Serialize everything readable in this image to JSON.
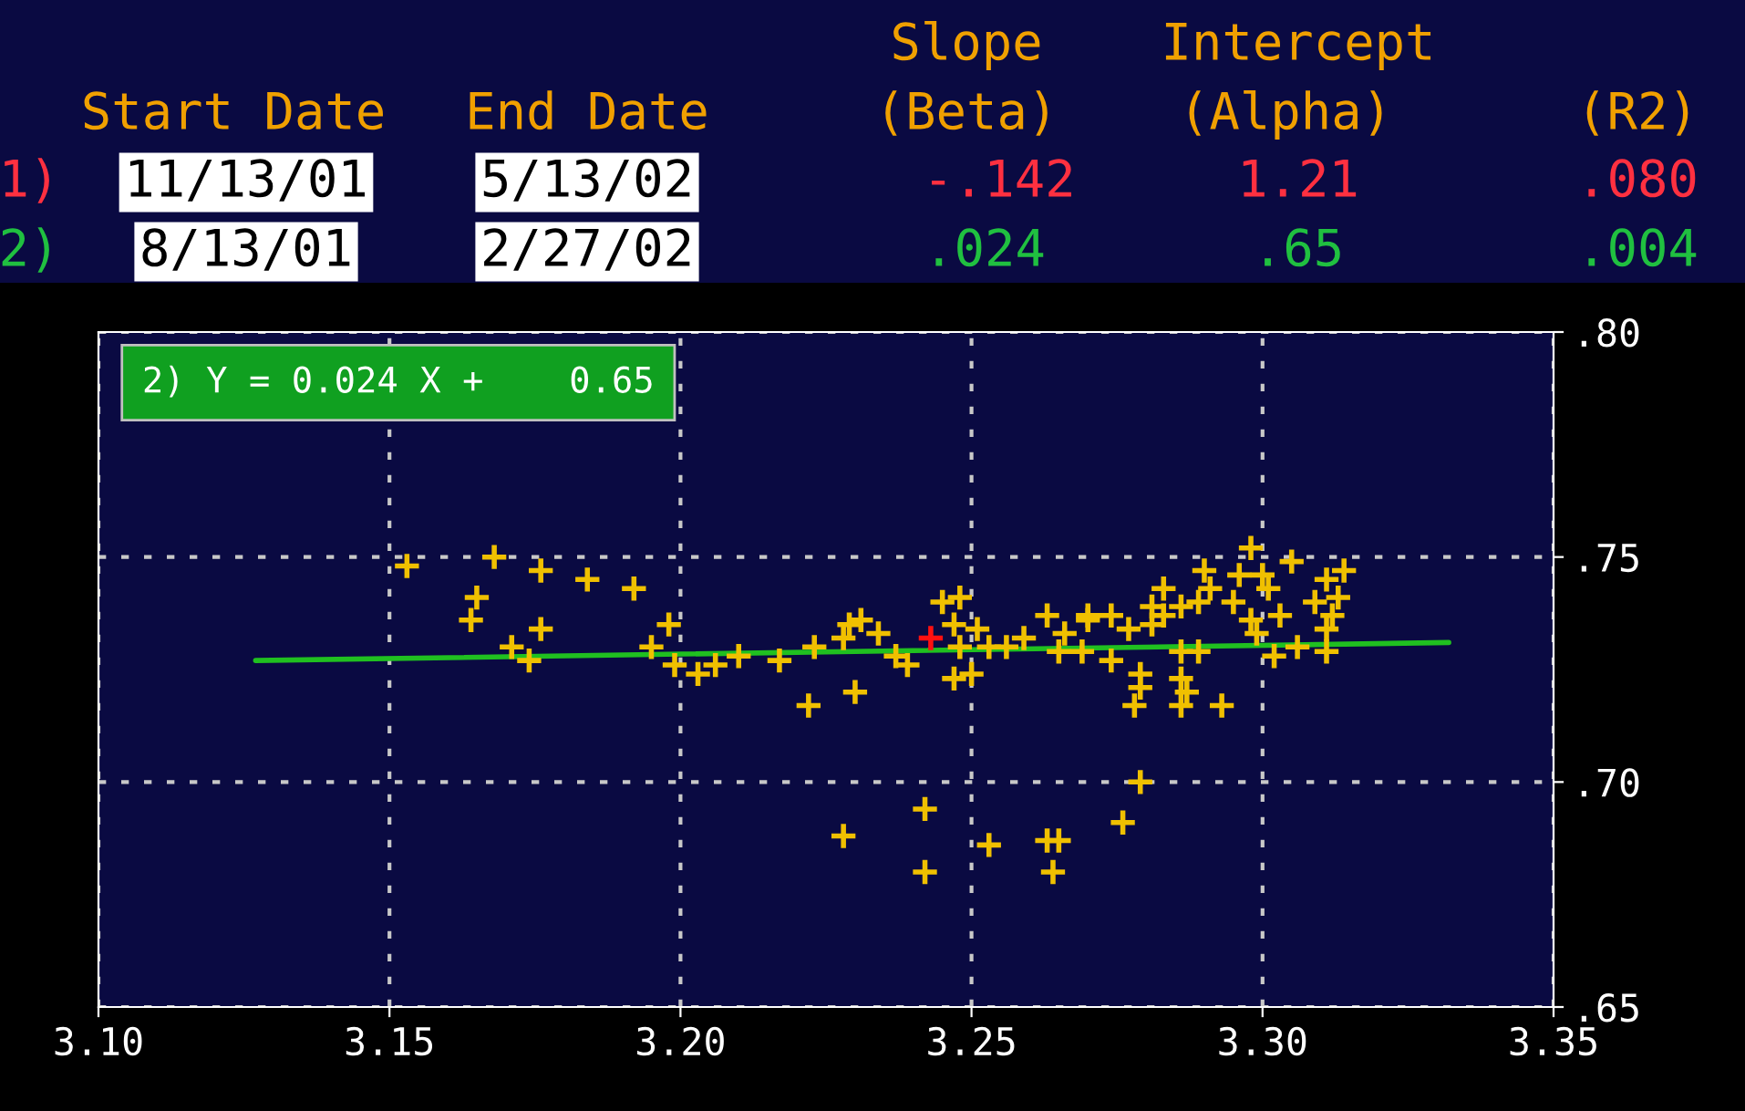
{
  "chart_data": {
    "type": "scatter",
    "grid": true,
    "xlim": [
      3.1,
      3.35
    ],
    "xticks": [
      {
        "value": 3.1,
        "label": "3.10"
      },
      {
        "value": 3.15,
        "label": "3.15"
      },
      {
        "value": 3.2,
        "label": "3.20"
      },
      {
        "value": 3.25,
        "label": "3.25"
      },
      {
        "value": 3.3,
        "label": "3.30"
      },
      {
        "value": 3.35,
        "label": "3.35"
      }
    ],
    "ylim": [
      0.65,
      0.8
    ],
    "yticks": [
      {
        "value": 0.65,
        "label": ".65"
      },
      {
        "value": 0.7,
        "label": ".70"
      },
      {
        "value": 0.75,
        "label": ".75"
      },
      {
        "value": 0.8,
        "label": ".80"
      }
    ],
    "annotations": [
      "Slope",
      "Intercept",
      "Start Date",
      "End Date",
      "(Beta)",
      "(Alpha)",
      "(R2)",
      "1)",
      "11/13/01",
      "5/13/02",
      "-.142",
      "1.21",
      ".080",
      "2)",
      "8/13/01",
      "2/27/02",
      ".024",
      ".65",
      ".004",
      "2) Y = 0.024 X +    0.65"
    ],
    "series": [
      {
        "marker": "cross",
        "color": "#f0c000",
        "x": [
          3.153,
          3.168,
          3.176,
          3.184,
          3.192,
          3.165,
          3.164,
          3.176,
          3.198,
          3.171,
          3.195,
          3.174,
          3.199,
          3.203,
          3.206,
          3.21,
          3.217,
          3.223,
          3.229,
          3.231,
          3.228,
          3.234,
          3.237,
          3.239,
          3.23,
          3.222,
          3.245,
          3.248,
          3.247,
          3.251,
          3.248,
          3.253,
          3.256,
          3.259,
          3.247,
          3.25,
          3.263,
          3.27,
          3.274,
          3.266,
          3.265,
          3.269,
          3.274,
          3.242,
          3.228,
          3.253,
          3.263,
          3.265,
          3.242,
          3.264,
          3.276,
          3.298,
          3.305,
          3.29,
          3.296,
          3.3,
          3.311,
          3.314,
          3.283,
          3.291,
          3.301,
          3.281,
          3.289,
          3.295,
          3.309,
          3.313,
          3.27,
          3.283,
          3.286,
          3.303,
          3.298,
          3.312,
          3.277,
          3.281,
          3.299,
          3.311,
          3.286,
          3.289,
          3.302,
          3.306,
          3.311,
          3.279,
          3.279,
          3.286,
          3.287,
          3.278,
          3.286,
          3.293,
          3.279
        ],
        "values": [
          0.748,
          0.75,
          0.747,
          0.745,
          0.743,
          0.741,
          0.736,
          0.734,
          0.735,
          0.73,
          0.73,
          0.727,
          0.726,
          0.724,
          0.726,
          0.728,
          0.727,
          0.73,
          0.735,
          0.736,
          0.732,
          0.733,
          0.728,
          0.726,
          0.72,
          0.717,
          0.74,
          0.741,
          0.735,
          0.734,
          0.73,
          0.73,
          0.73,
          0.732,
          0.723,
          0.724,
          0.737,
          0.737,
          0.737,
          0.733,
          0.729,
          0.729,
          0.727,
          0.694,
          0.688,
          0.686,
          0.687,
          0.687,
          0.68,
          0.68,
          0.691,
          0.752,
          0.749,
          0.747,
          0.746,
          0.746,
          0.745,
          0.747,
          0.743,
          0.743,
          0.743,
          0.739,
          0.74,
          0.74,
          0.74,
          0.741,
          0.736,
          0.737,
          0.739,
          0.737,
          0.736,
          0.737,
          0.734,
          0.735,
          0.733,
          0.734,
          0.729,
          0.729,
          0.728,
          0.73,
          0.729,
          0.724,
          0.721,
          0.723,
          0.72,
          0.717,
          0.717,
          0.717,
          0.7
        ]
      },
      {
        "marker": "cross",
        "color": "#ff1010",
        "x": [
          3.243
        ],
        "values": [
          0.732
        ]
      },
      {
        "type": "line",
        "color": "#20c020",
        "x": [
          3.127,
          3.332
        ],
        "values": [
          0.727,
          0.731
        ]
      }
    ]
  }
}
